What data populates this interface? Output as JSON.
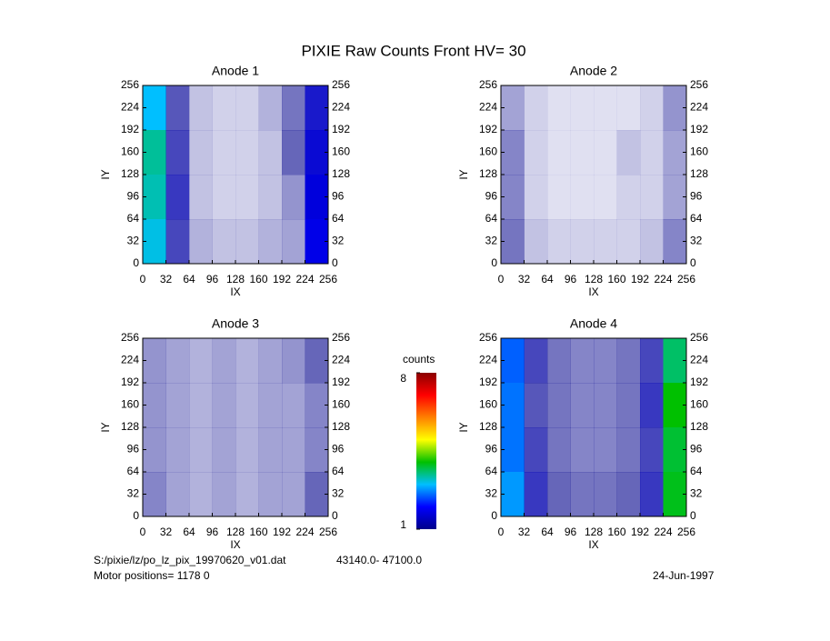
{
  "title": "PIXIE Raw Counts Front HV= 30",
  "chart_data": [
    {
      "type": "heatmap",
      "title": "Anode 1",
      "xlabel": "IX",
      "ylabel": "IY",
      "xlim": [
        0,
        256
      ],
      "ylim": [
        0,
        256
      ],
      "xticks": [
        0,
        32,
        64,
        96,
        128,
        160,
        192,
        224,
        256
      ],
      "yticks": [
        0,
        32,
        64,
        96,
        128,
        160,
        192,
        224,
        256
      ],
      "values": [
        [
          3.0,
          1.1,
          0.4,
          0.3,
          0.3,
          0.5,
          0.9,
          1.5
        ],
        [
          3.4,
          1.2,
          0.4,
          0.3,
          0.3,
          0.4,
          1.0,
          1.6
        ],
        [
          3.3,
          1.3,
          0.4,
          0.3,
          0.3,
          0.4,
          0.7,
          1.7
        ],
        [
          3.1,
          1.2,
          0.5,
          0.4,
          0.4,
          0.5,
          0.6,
          1.8
        ]
      ]
    },
    {
      "type": "heatmap",
      "title": "Anode 2",
      "xlabel": "IX",
      "ylabel": "IY",
      "xlim": [
        0,
        256
      ],
      "ylim": [
        0,
        256
      ],
      "xticks": [
        0,
        32,
        64,
        96,
        128,
        160,
        192,
        224,
        256
      ],
      "yticks": [
        0,
        32,
        64,
        96,
        128,
        160,
        192,
        224,
        256
      ],
      "values": [
        [
          0.6,
          0.3,
          0.2,
          0.2,
          0.2,
          0.2,
          0.3,
          0.7
        ],
        [
          0.8,
          0.3,
          0.2,
          0.2,
          0.2,
          0.4,
          0.3,
          0.6
        ],
        [
          0.8,
          0.3,
          0.2,
          0.2,
          0.2,
          0.3,
          0.3,
          0.6
        ],
        [
          0.9,
          0.4,
          0.3,
          0.3,
          0.3,
          0.3,
          0.4,
          0.8
        ]
      ]
    },
    {
      "type": "heatmap",
      "title": "Anode 3",
      "xlabel": "IX",
      "ylabel": "IY",
      "xlim": [
        0,
        256
      ],
      "ylim": [
        0,
        256
      ],
      "xticks": [
        0,
        32,
        64,
        96,
        128,
        160,
        192,
        224,
        256
      ],
      "yticks": [
        0,
        32,
        64,
        96,
        128,
        160,
        192,
        224,
        256
      ],
      "values": [
        [
          0.7,
          0.6,
          0.5,
          0.6,
          0.5,
          0.6,
          0.7,
          1.0
        ],
        [
          0.7,
          0.6,
          0.5,
          0.6,
          0.5,
          0.6,
          0.6,
          0.8
        ],
        [
          0.7,
          0.6,
          0.5,
          0.6,
          0.5,
          0.6,
          0.6,
          0.8
        ],
        [
          0.8,
          0.6,
          0.5,
          0.6,
          0.5,
          0.6,
          0.6,
          1.0
        ]
      ]
    },
    {
      "type": "heatmap",
      "title": "Anode 4",
      "xlabel": "IX",
      "ylabel": "IY",
      "xlim": [
        0,
        256
      ],
      "ylim": [
        0,
        256
      ],
      "xticks": [
        0,
        32,
        64,
        96,
        128,
        160,
        192,
        224,
        256
      ],
      "yticks": [
        0,
        32,
        64,
        96,
        128,
        160,
        192,
        224,
        256
      ],
      "values": [
        [
          2.5,
          1.2,
          0.9,
          0.8,
          0.8,
          0.9,
          1.2,
          3.6
        ],
        [
          2.6,
          1.1,
          0.9,
          0.8,
          0.8,
          0.9,
          1.3,
          4.0
        ],
        [
          2.6,
          1.2,
          0.9,
          0.8,
          0.8,
          0.9,
          1.2,
          3.8
        ],
        [
          2.8,
          1.3,
          1.0,
          0.9,
          0.9,
          1.0,
          1.3,
          3.9
        ]
      ]
    }
  ],
  "colorbar": {
    "label": "counts",
    "lim": [
      1,
      8
    ],
    "ticks": [
      1,
      8
    ],
    "colors": [
      "#00008b",
      "#0000ff",
      "#00bfff",
      "#00c000",
      "#ffff00",
      "#ff8000",
      "#ff0000",
      "#8b0000"
    ]
  },
  "footer": {
    "file": "S:/pixie/lz/po_lz_pix_19970620_v01.dat",
    "range": "43140.0- 47100.0",
    "motor": "Motor positions= 1178 0",
    "date": "24-Jun-1997"
  }
}
